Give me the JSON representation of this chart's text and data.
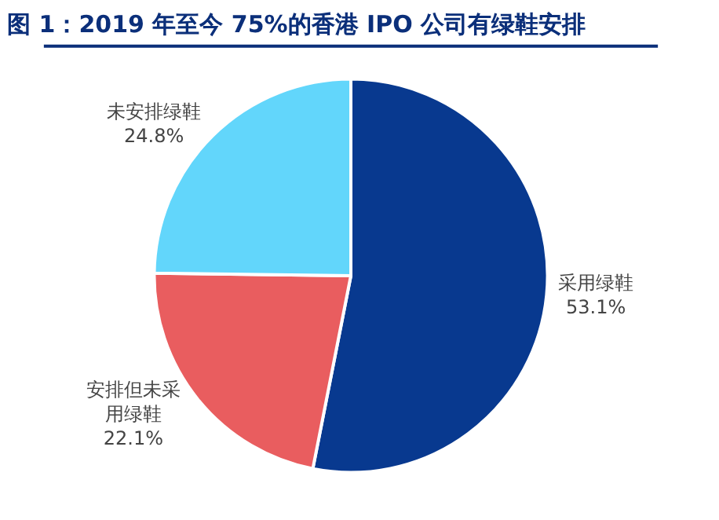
{
  "chart_data": {
    "type": "pie",
    "title": "图 1：2019 年至今 75%的香港 IPO 公司有绿鞋安排",
    "categories": [
      "采用绿鞋",
      "安排但未采用绿鞋",
      "未安排绿鞋"
    ],
    "values": [
      53.1,
      22.1,
      24.8
    ],
    "value_labels": [
      "53.1%",
      "22.1%",
      "24.8%"
    ],
    "colors": [
      "#08398f",
      "#e95d5f",
      "#62d6fb"
    ],
    "legend": false
  }
}
